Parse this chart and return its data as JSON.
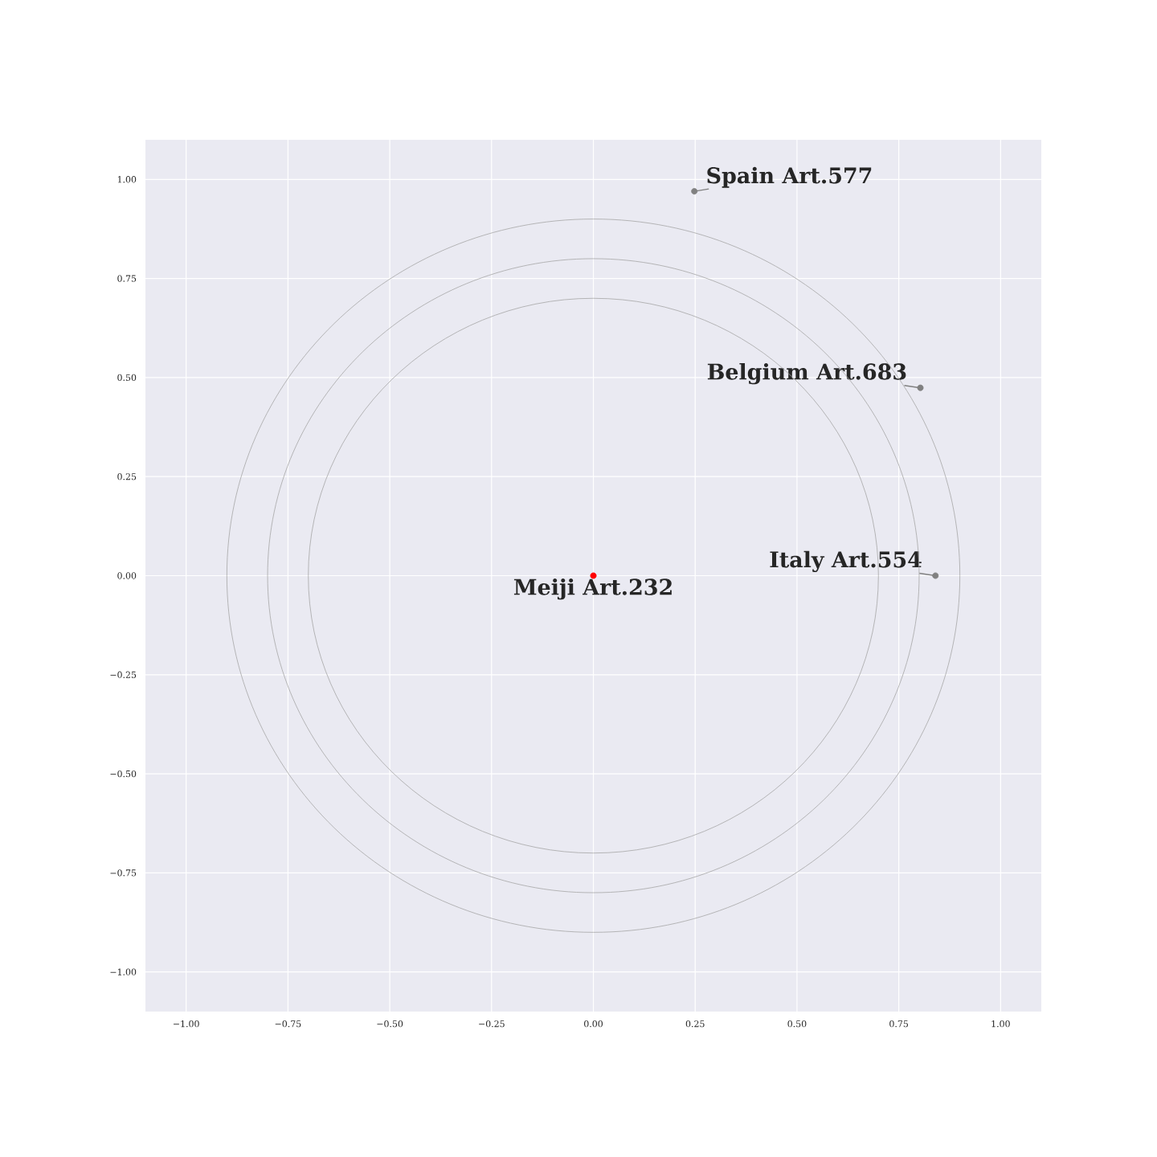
{
  "chart_data": {
    "type": "scatter",
    "xlim": [
      -1.1,
      1.1
    ],
    "ylim": [
      -1.1,
      1.1
    ],
    "xticks": [
      {
        "value": -1,
        "label": "−1.00"
      },
      {
        "value": -0.75,
        "label": "−0.75"
      },
      {
        "value": -0.5,
        "label": "−0.50"
      },
      {
        "value": -0.25,
        "label": "−0.25"
      },
      {
        "value": 0,
        "label": "0.00"
      },
      {
        "value": 0.25,
        "label": "0.25"
      },
      {
        "value": 0.5,
        "label": "0.50"
      },
      {
        "value": 0.75,
        "label": "0.75"
      },
      {
        "value": 1,
        "label": "1.00"
      }
    ],
    "yticks": [
      {
        "value": -1,
        "label": "−1.00"
      },
      {
        "value": -0.75,
        "label": "−0.75"
      },
      {
        "value": -0.5,
        "label": "−0.50"
      },
      {
        "value": -0.25,
        "label": "−0.25"
      },
      {
        "value": 0,
        "label": "0.00"
      },
      {
        "value": 0.25,
        "label": "0.25"
      },
      {
        "value": 0.5,
        "label": "0.50"
      },
      {
        "value": 0.75,
        "label": "0.75"
      },
      {
        "value": 1,
        "label": "1.00"
      }
    ],
    "grid": true,
    "series": [
      {
        "marker": "circle",
        "colors": [
          "#ff0000",
          "#808080",
          "#808080",
          "#808080"
        ],
        "x": [
          0,
          0.248,
          0.803,
          0.84
        ],
        "values": [
          0,
          0.97,
          0.474,
          0
        ]
      }
    ],
    "annotations": [
      {
        "text": "Meiji Art.232",
        "x": 0,
        "y": 0
      },
      {
        "text": "Spain Art.577",
        "x": 0.248,
        "y": 0.97
      },
      {
        "text": "Belgium Art.683",
        "x": 0.803,
        "y": 0.474
      },
      {
        "text": "Italy Art.554",
        "x": 0.84,
        "y": 0
      }
    ]
  }
}
